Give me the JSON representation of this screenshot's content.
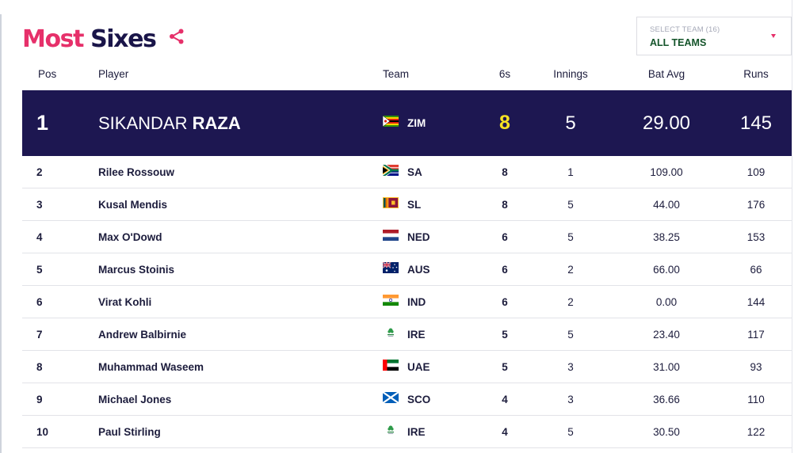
{
  "page": {
    "title_part1": "Most",
    "title_part2": "Sixes",
    "share_icon": "share-icon"
  },
  "team_select": {
    "label": "SELECT TEAM (16)",
    "value": "ALL TEAMS",
    "icon": "caret-down-icon"
  },
  "columns": {
    "pos": "Pos",
    "player": "Player",
    "team": "Team",
    "sixes": "6s",
    "innings": "Innings",
    "bat_avg": "Bat Avg",
    "runs": "Runs"
  },
  "leader": {
    "pos": "1",
    "first_name": "SIKANDAR",
    "last_name": "RAZA",
    "team": "ZIM",
    "flag": "zimbabwe-flag",
    "sixes": "8",
    "innings": "5",
    "bat_avg": "29.00",
    "runs": "145"
  },
  "rows": [
    {
      "pos": "2",
      "player": "Rilee Rossouw",
      "team": "SA",
      "flag": "south-africa-flag",
      "sixes": "8",
      "innings": "1",
      "bat_avg": "109.00",
      "runs": "109"
    },
    {
      "pos": "3",
      "player": "Kusal Mendis",
      "team": "SL",
      "flag": "sri-lanka-flag",
      "sixes": "8",
      "innings": "5",
      "bat_avg": "44.00",
      "runs": "176"
    },
    {
      "pos": "4",
      "player": "Max O'Dowd",
      "team": "NED",
      "flag": "netherlands-flag",
      "sixes": "6",
      "innings": "5",
      "bat_avg": "38.25",
      "runs": "153"
    },
    {
      "pos": "5",
      "player": "Marcus Stoinis",
      "team": "AUS",
      "flag": "australia-flag",
      "sixes": "6",
      "innings": "2",
      "bat_avg": "66.00",
      "runs": "66"
    },
    {
      "pos": "6",
      "player": "Virat Kohli",
      "team": "IND",
      "flag": "india-flag",
      "sixes": "6",
      "innings": "2",
      "bat_avg": "0.00",
      "runs": "144"
    },
    {
      "pos": "7",
      "player": "Andrew Balbirnie",
      "team": "IRE",
      "flag": "ireland-logo",
      "sixes": "5",
      "innings": "5",
      "bat_avg": "23.40",
      "runs": "117"
    },
    {
      "pos": "8",
      "player": "Muhammad Waseem",
      "team": "UAE",
      "flag": "uae-flag",
      "sixes": "5",
      "innings": "3",
      "bat_avg": "31.00",
      "runs": "93"
    },
    {
      "pos": "9",
      "player": "Michael Jones",
      "team": "SCO",
      "flag": "scotland-flag",
      "sixes": "4",
      "innings": "3",
      "bat_avg": "36.66",
      "runs": "110"
    },
    {
      "pos": "10",
      "player": "Paul Stirling",
      "team": "IRE",
      "flag": "ireland-logo",
      "sixes": "4",
      "innings": "5",
      "bat_avg": "30.50",
      "runs": "122"
    }
  ],
  "colors": {
    "title_accent": "#e6306a",
    "title_dark": "#1a1549",
    "leader_bg": "#1d1751",
    "leader_sixes": "#f7e223",
    "select_value": "#14542a"
  }
}
